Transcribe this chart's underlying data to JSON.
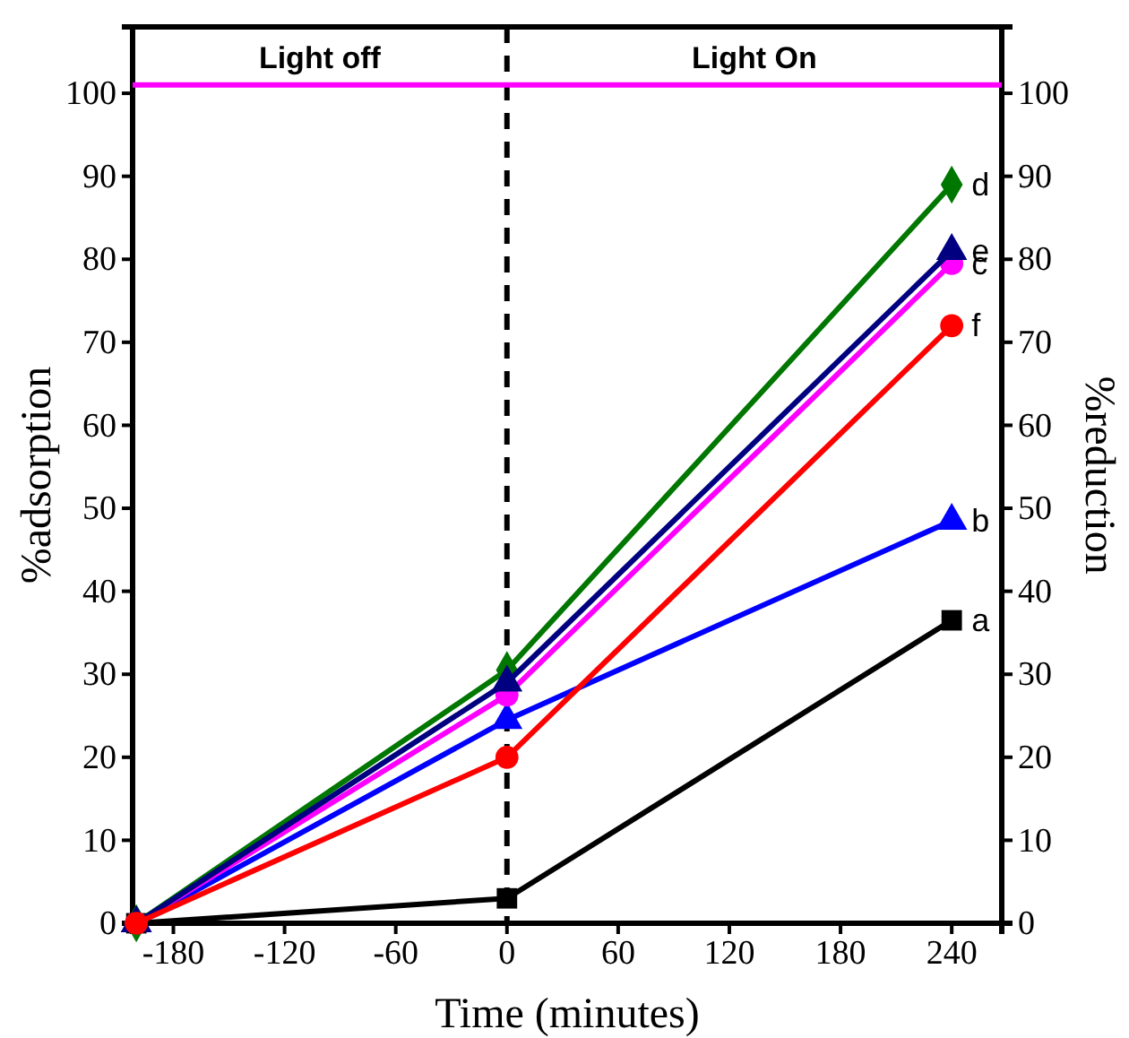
{
  "chart_data": {
    "type": "line",
    "xlabel": "Time (minutes)",
    "ylabel": "%adsorption",
    "y2label": "%reduction",
    "x": [
      -200,
      0,
      240
    ],
    "xlim": [
      -202,
      267
    ],
    "xticks": [
      -180,
      -120,
      -60,
      0,
      60,
      120,
      180,
      240
    ],
    "ylim": [
      0,
      108
    ],
    "yticks": [
      0,
      10,
      20,
      30,
      40,
      50,
      60,
      70,
      80,
      90,
      100
    ],
    "y2lim": [
      0,
      108
    ],
    "y2ticks": [
      0,
      10,
      20,
      30,
      40,
      50,
      60,
      70,
      80,
      90,
      100
    ],
    "grid": false,
    "legend": false,
    "line_style": "solid",
    "series": [
      {
        "name": "a",
        "color": "#000000",
        "marker": "square",
        "values": [
          0,
          3,
          36.5
        ]
      },
      {
        "name": "b",
        "color": "#0000ff",
        "marker": "triangle",
        "values": [
          0,
          24.5,
          48.5
        ]
      },
      {
        "name": "c",
        "color": "#ff00ff",
        "marker": "circle",
        "values": [
          0,
          27.5,
          79.5
        ]
      },
      {
        "name": "d",
        "color": "#007700",
        "marker": "diamond",
        "values": [
          0,
          30.5,
          89
        ]
      },
      {
        "name": "e",
        "color": "#000080",
        "marker": "triangle",
        "values": [
          0,
          29,
          81
        ]
      },
      {
        "name": "f",
        "color": "#ff0000",
        "marker": "circle",
        "values": [
          0,
          20,
          72
        ]
      }
    ],
    "ref_lines": [
      {
        "axis": "x",
        "value": 0,
        "color": "#000000",
        "line_style": "dashed"
      },
      {
        "axis": "y",
        "value": 101,
        "color": "#ff00ff",
        "line_style": "solid"
      }
    ],
    "annotations": [
      "Light off",
      "Light On"
    ]
  }
}
